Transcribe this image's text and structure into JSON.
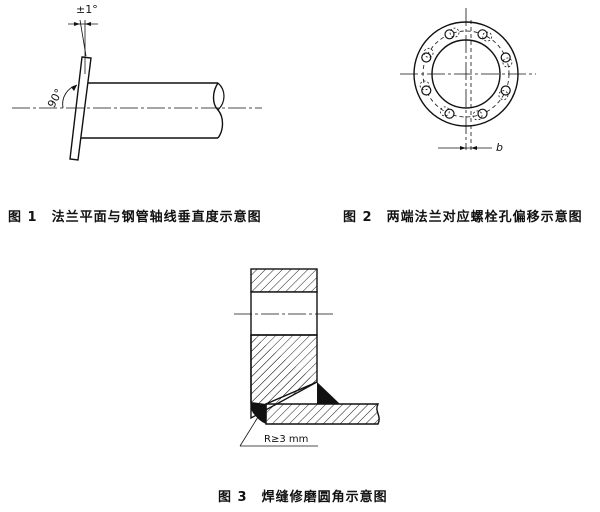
{
  "figure1": {
    "caption": "图 1　法兰平面与钢管轴线垂直度示意图",
    "tolerance_label": "±1°",
    "angle_label": "90°"
  },
  "figure2": {
    "caption": "图 2　两端法兰对应螺栓孔偏移示意图",
    "offset_label": "b"
  },
  "figure3": {
    "caption": "图 3　焊缝修磨圆角示意图",
    "radius_label": "R≥3 mm"
  }
}
